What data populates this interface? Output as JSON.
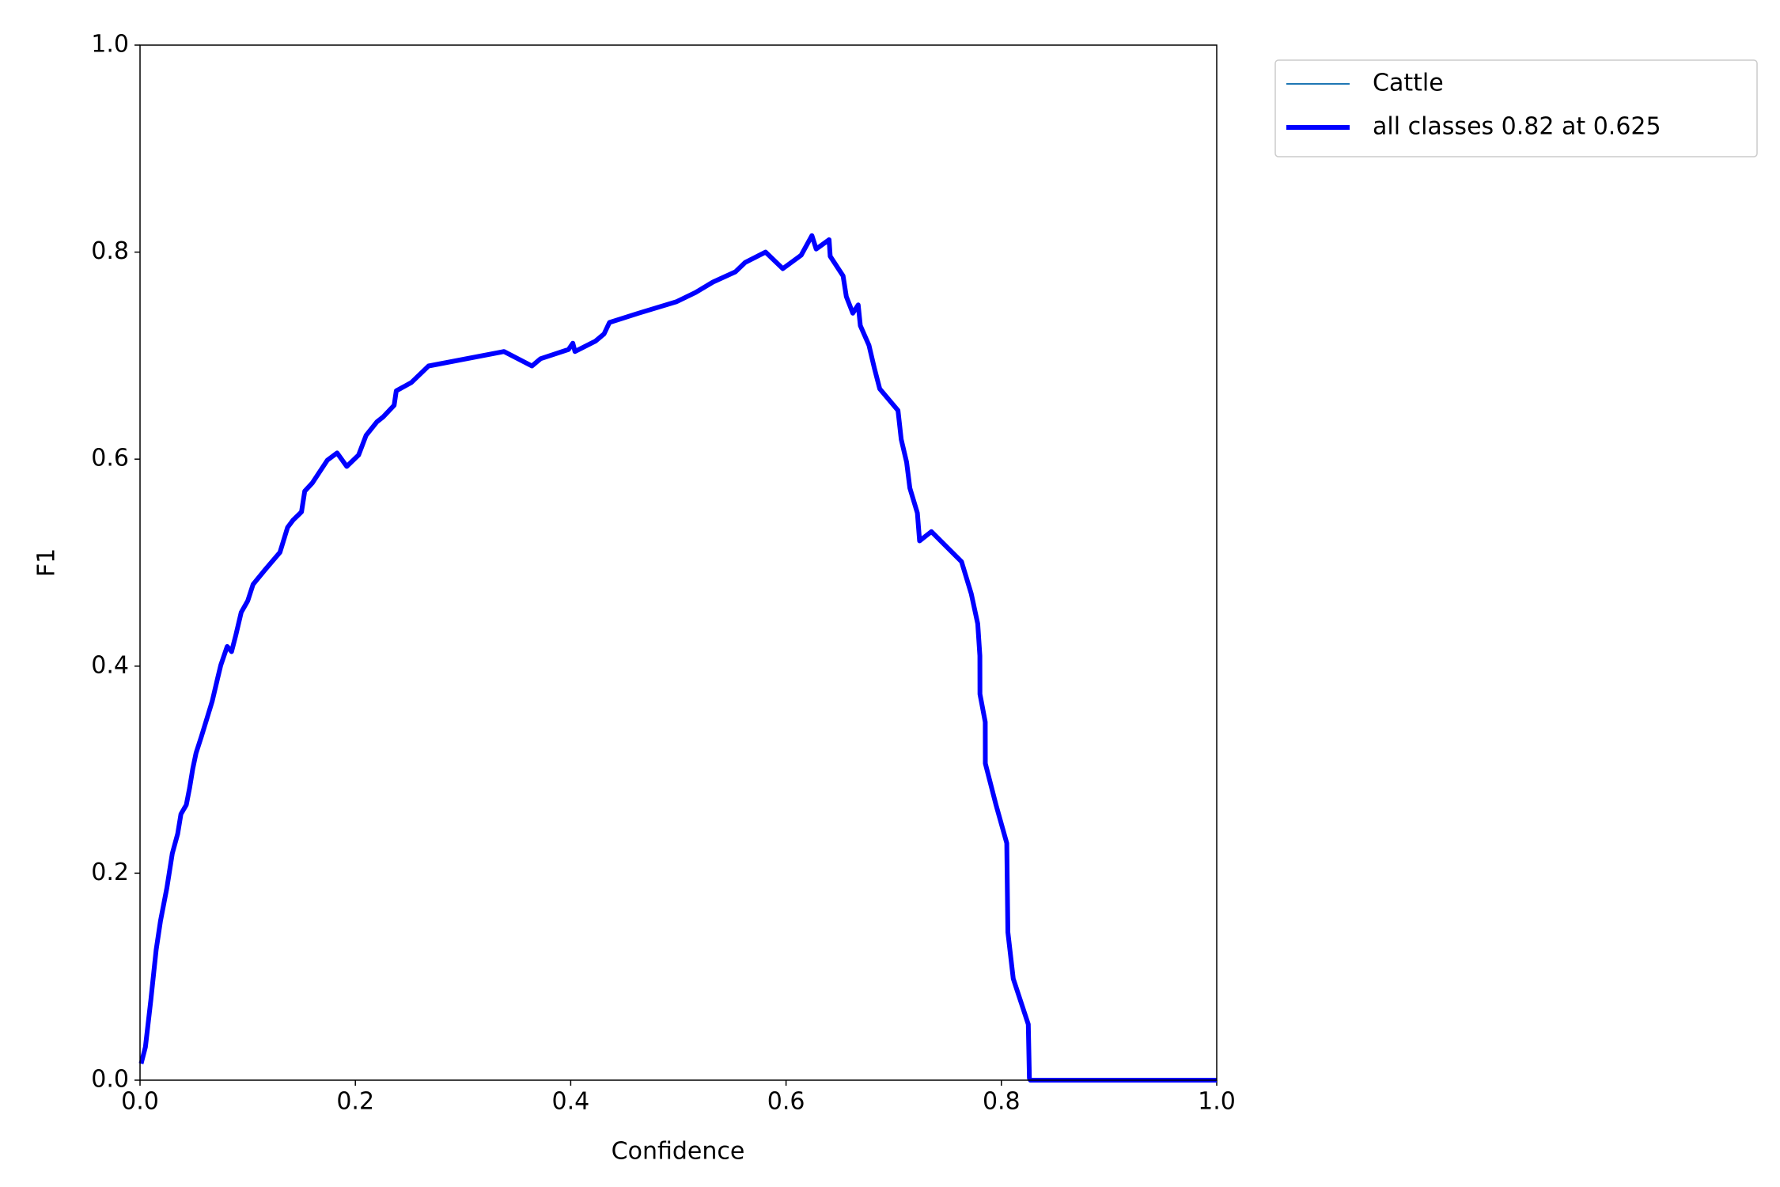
{
  "chart_data": {
    "type": "line",
    "xlabel": "Confidence",
    "ylabel": "F1",
    "xlim": [
      0,
      1
    ],
    "ylim": [
      0,
      1
    ],
    "xticks": [
      {
        "value": 0,
        "label": "0.0"
      },
      0.2,
      0.4,
      0.6,
      0.8,
      {
        "value": 1,
        "label": "1.0"
      }
    ],
    "yticks": [
      {
        "value": 0,
        "label": "0.0"
      },
      0.2,
      0.4,
      0.6,
      0.8,
      {
        "value": 1,
        "label": "1.0"
      }
    ],
    "x": [
      0.001,
      0.005,
      0.01,
      0.015,
      0.019,
      0.025,
      0.03,
      0.035,
      0.038,
      0.043,
      0.046,
      0.049,
      0.052,
      0.057,
      0.062,
      0.067,
      0.072,
      0.075,
      0.081,
      0.085,
      0.089,
      0.094,
      0.1,
      0.105,
      0.116,
      0.13,
      0.137,
      0.142,
      0.15,
      0.153,
      0.16,
      0.167,
      0.174,
      0.183,
      0.192,
      0.203,
      0.21,
      0.22,
      0.226,
      0.236,
      0.238,
      0.252,
      0.268,
      0.338,
      0.364,
      0.372,
      0.398,
      0.402,
      0.404,
      0.423,
      0.431,
      0.436,
      0.463,
      0.498,
      0.516,
      0.532,
      0.553,
      0.562,
      0.581,
      0.597,
      0.614,
      0.624,
      0.628,
      0.64,
      0.641,
      0.653,
      0.656,
      0.662,
      0.667,
      0.669,
      0.677,
      0.682,
      0.687,
      0.704,
      0.707,
      0.712,
      0.715,
      0.722,
      0.724,
      0.735,
      0.763,
      0.772,
      0.778,
      0.78,
      0.7801,
      0.785,
      0.7851,
      0.795,
      0.805,
      0.806,
      0.811,
      0.825,
      0.826,
      0.827,
      1.0
    ],
    "series": [
      {
        "name": "Cattle",
        "color": "#1f77b4",
        "values": [
          0.016,
          0.032,
          0.077,
          0.126,
          0.154,
          0.186,
          0.219,
          0.238,
          0.257,
          0.266,
          0.282,
          0.301,
          0.316,
          0.332,
          0.349,
          0.366,
          0.388,
          0.401,
          0.419,
          0.414,
          0.43,
          0.452,
          0.463,
          0.479,
          0.493,
          0.51,
          0.534,
          0.541,
          0.549,
          0.569,
          0.577,
          0.588,
          0.599,
          0.606,
          0.593,
          0.604,
          0.623,
          0.636,
          0.641,
          0.652,
          0.666,
          0.674,
          0.69,
          0.704,
          0.69,
          0.697,
          0.706,
          0.712,
          0.704,
          0.714,
          0.721,
          0.732,
          0.741,
          0.752,
          0.761,
          0.771,
          0.781,
          0.79,
          0.8,
          0.784,
          0.797,
          0.816,
          0.803,
          0.812,
          0.796,
          0.777,
          0.757,
          0.741,
          0.749,
          0.729,
          0.71,
          0.688,
          0.668,
          0.647,
          0.619,
          0.597,
          0.572,
          0.548,
          0.521,
          0.53,
          0.501,
          0.47,
          0.441,
          0.41,
          0.373,
          0.346,
          0.306,
          0.266,
          0.229,
          0.143,
          0.098,
          0.054,
          0.002,
          0,
          0
        ]
      },
      {
        "name": "all classes 0.82 at 0.625",
        "color": "#0000ff",
        "values": [
          0.016,
          0.032,
          0.077,
          0.126,
          0.154,
          0.186,
          0.219,
          0.238,
          0.257,
          0.266,
          0.282,
          0.301,
          0.316,
          0.332,
          0.349,
          0.366,
          0.388,
          0.401,
          0.419,
          0.414,
          0.43,
          0.452,
          0.463,
          0.479,
          0.493,
          0.51,
          0.534,
          0.541,
          0.549,
          0.569,
          0.577,
          0.588,
          0.599,
          0.606,
          0.593,
          0.604,
          0.623,
          0.636,
          0.641,
          0.652,
          0.666,
          0.674,
          0.69,
          0.704,
          0.69,
          0.697,
          0.706,
          0.712,
          0.704,
          0.714,
          0.721,
          0.732,
          0.741,
          0.752,
          0.761,
          0.771,
          0.781,
          0.79,
          0.8,
          0.784,
          0.797,
          0.816,
          0.803,
          0.812,
          0.796,
          0.777,
          0.757,
          0.741,
          0.749,
          0.729,
          0.71,
          0.688,
          0.668,
          0.647,
          0.619,
          0.597,
          0.572,
          0.548,
          0.521,
          0.53,
          0.501,
          0.47,
          0.441,
          0.41,
          0.373,
          0.346,
          0.306,
          0.266,
          0.229,
          0.143,
          0.098,
          0.054,
          0.002,
          0,
          0
        ]
      }
    ]
  }
}
